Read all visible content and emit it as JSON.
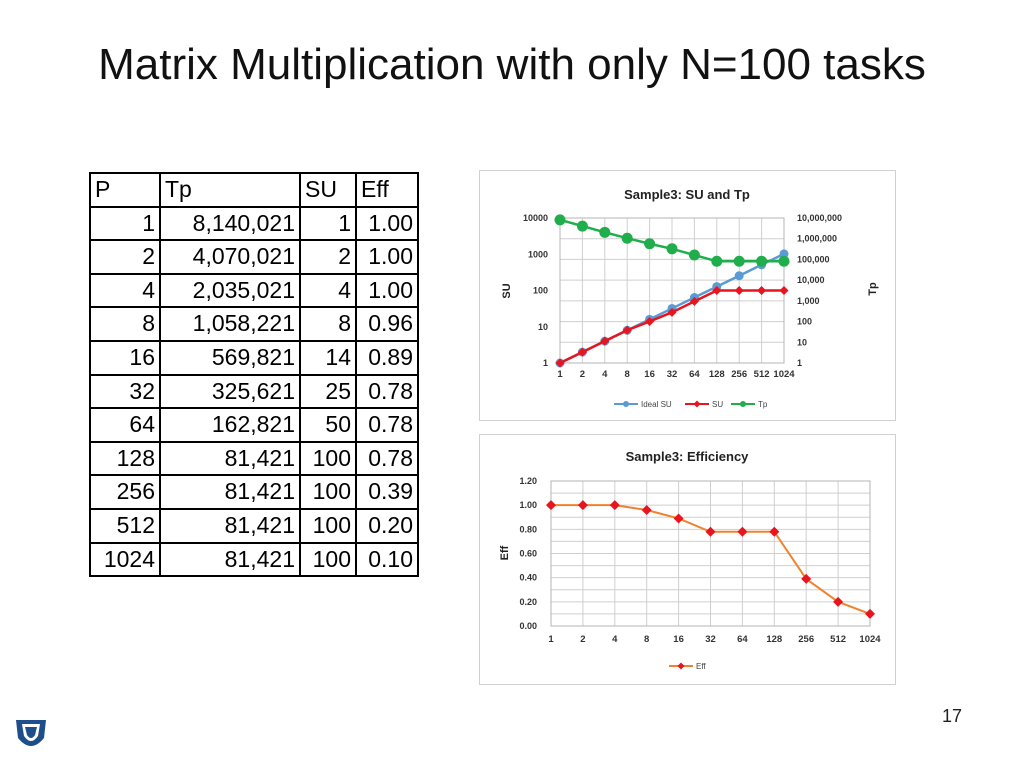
{
  "slide": {
    "title": "Matrix Multiplication with only N=100 tasks",
    "page_number": "17"
  },
  "table": {
    "headers": [
      "P",
      "Tp",
      "SU",
      "Eff"
    ],
    "rows": [
      [
        "1",
        "8,140,021",
        "1",
        "1.00"
      ],
      [
        "2",
        "4,070,021",
        "2",
        "1.00"
      ],
      [
        "4",
        "2,035,021",
        "4",
        "1.00"
      ],
      [
        "8",
        "1,058,221",
        "8",
        "0.96"
      ],
      [
        "16",
        "569,821",
        "14",
        "0.89"
      ],
      [
        "32",
        "325,621",
        "25",
        "0.78"
      ],
      [
        "64",
        "162,821",
        "50",
        "0.78"
      ],
      [
        "128",
        "81,421",
        "100",
        "0.78"
      ],
      [
        "256",
        "81,421",
        "100",
        "0.39"
      ],
      [
        "512",
        "81,421",
        "100",
        "0.20"
      ],
      [
        "1024",
        "81,421",
        "100",
        "0.10"
      ]
    ]
  },
  "colors": {
    "ideal_su": "#5B9BD5",
    "su": "#E8141E",
    "tp": "#1FAE4B",
    "eff": "#F0822D",
    "eff_marker": "#E8141E",
    "logo": "#1F4E8C"
  },
  "chart_data": [
    {
      "type": "line",
      "title": "Sample3:  SU and Tp",
      "categories": [
        "1",
        "2",
        "4",
        "8",
        "16",
        "32",
        "64",
        "128",
        "256",
        "512",
        "1024"
      ],
      "ylabel": "SU",
      "y2label": "Tp",
      "yscale": "log",
      "ylim": [
        1,
        10000
      ],
      "yticks": [
        "1",
        "10",
        "100",
        "1000",
        "10000"
      ],
      "y2scale": "log",
      "y2lim": [
        1,
        10000000
      ],
      "y2ticks": [
        "1",
        "10",
        "100",
        "1,000",
        "10,000",
        "100,000",
        "1,000,000",
        "10,000,000"
      ],
      "series": [
        {
          "name": "Ideal SU",
          "axis": "left",
          "values": [
            1,
            2,
            4,
            8,
            16,
            32,
            64,
            128,
            256,
            512,
            1024
          ]
        },
        {
          "name": "SU",
          "axis": "left",
          "values": [
            1,
            2,
            4,
            8,
            14,
            25,
            50,
            100,
            100,
            100,
            100
          ]
        },
        {
          "name": "Tp",
          "axis": "right",
          "values": [
            8140021,
            4070021,
            2035021,
            1058221,
            569821,
            325621,
            162821,
            81421,
            81421,
            81421,
            81421
          ]
        }
      ],
      "legend": "bottom"
    },
    {
      "type": "line",
      "title": "Sample3: Efficiency",
      "categories": [
        "1",
        "2",
        "4",
        "8",
        "16",
        "32",
        "64",
        "128",
        "256",
        "512",
        "1024"
      ],
      "ylabel": "Eff",
      "ylim": [
        0,
        1.2
      ],
      "yticks": [
        "0.00",
        "0.20",
        "0.40",
        "0.60",
        "0.80",
        "1.00",
        "1.20"
      ],
      "series": [
        {
          "name": "Eff",
          "values": [
            1.0,
            1.0,
            1.0,
            0.96,
            0.89,
            0.78,
            0.78,
            0.78,
            0.39,
            0.2,
            0.1
          ]
        }
      ],
      "legend": "bottom"
    }
  ]
}
